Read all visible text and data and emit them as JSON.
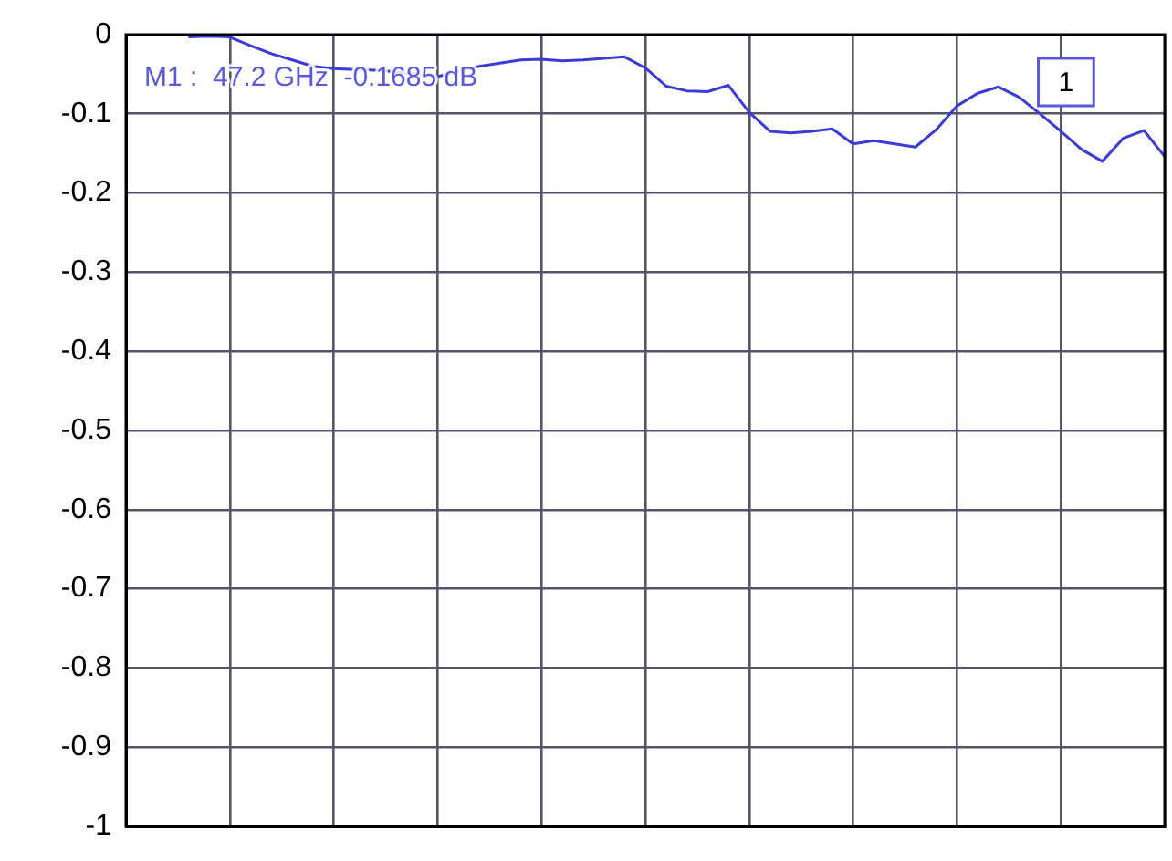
{
  "chart_data": {
    "type": "line",
    "categories": [
      null,
      null,
      null,
      null,
      null,
      null,
      null,
      null,
      null,
      null,
      null,
      null,
      null,
      null,
      null,
      null,
      null,
      null,
      null,
      null,
      null,
      null,
      null,
      null,
      null,
      null,
      null,
      null,
      null,
      null,
      null,
      null,
      null,
      null,
      null,
      null,
      null,
      null,
      null,
      null,
      null,
      null,
      null,
      null,
      null,
      null,
      null,
      null,
      null,
      null,
      null
    ],
    "series": [
      {
        "color": "#3b3bd6",
        "values": [
          null,
          null,
          null,
          -0.003,
          -0.002,
          -0.003,
          -0.014,
          -0.024,
          -0.032,
          -0.04,
          -0.043,
          -0.044,
          -0.045,
          -0.047,
          -0.05,
          -0.053,
          -0.046,
          -0.04,
          -0.036,
          -0.032,
          -0.031,
          -0.033,
          -0.032,
          -0.03,
          -0.028,
          -0.042,
          -0.065,
          -0.071,
          -0.072,
          -0.064,
          -0.098,
          -0.122,
          -0.124,
          -0.122,
          -0.119,
          -0.138,
          -0.134,
          -0.138,
          -0.142,
          -0.12,
          -0.09,
          -0.074,
          -0.066,
          -0.079,
          -0.1,
          -0.122,
          -0.145,
          -0.16,
          -0.131,
          -0.121,
          -0.154
        ]
      }
    ],
    "ylim": [
      -1,
      0
    ],
    "yticks": [
      0,
      -0.1,
      -0.2,
      -0.3,
      -0.4,
      -0.5,
      -0.6,
      -0.7,
      -0.8,
      -0.9,
      -1
    ],
    "grid": true,
    "tick_labels": "y",
    "marker": "none",
    "line_style": "solid",
    "legend": false,
    "annotations": [
      "M1 :  47.2 GHz  -0.1685 dB",
      "1"
    ]
  }
}
